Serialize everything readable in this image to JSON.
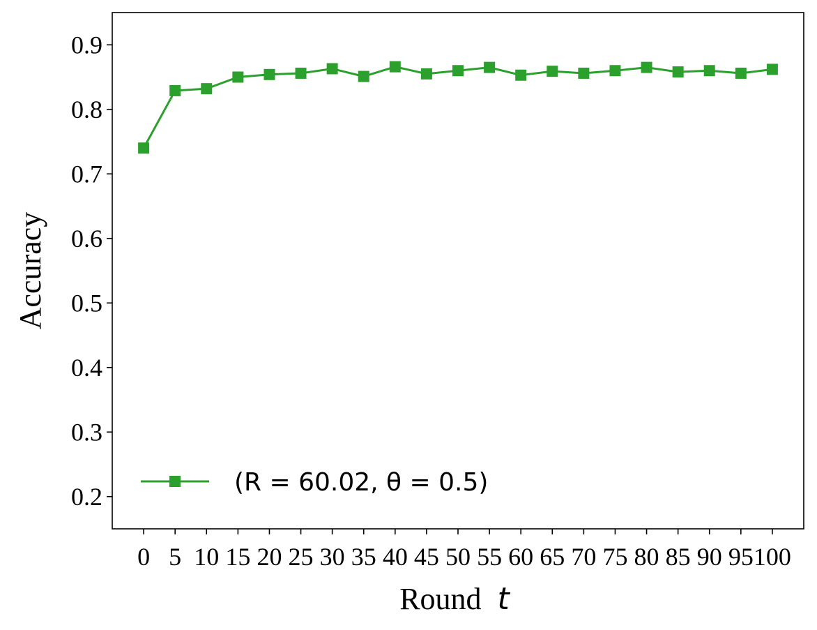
{
  "chart_data": {
    "type": "line",
    "xlabel": "Round",
    "xlabel_var": "t",
    "ylabel": "Accuracy",
    "xlim": [
      -5,
      105
    ],
    "ylim": [
      0.15,
      0.95
    ],
    "x_ticks": [
      0,
      5,
      10,
      15,
      20,
      25,
      30,
      35,
      40,
      45,
      50,
      55,
      60,
      65,
      70,
      75,
      80,
      85,
      90,
      95,
      100
    ],
    "y_ticks": [
      "0.2",
      "0.3",
      "0.4",
      "0.5",
      "0.6",
      "0.7",
      "0.8",
      "0.9"
    ],
    "grid": false,
    "legend_position": "lower-left",
    "series": [
      {
        "name": "(R = 60.02, θ = 0.5)",
        "color": "#2ca02c",
        "marker": "square",
        "x": [
          0,
          5,
          10,
          15,
          20,
          25,
          30,
          35,
          40,
          45,
          50,
          55,
          60,
          65,
          70,
          75,
          80,
          85,
          90,
          95,
          100
        ],
        "values": [
          0.74,
          0.829,
          0.832,
          0.85,
          0.854,
          0.856,
          0.863,
          0.851,
          0.866,
          0.855,
          0.86,
          0.865,
          0.853,
          0.859,
          0.856,
          0.86,
          0.865,
          0.858,
          0.86,
          0.856,
          0.862
        ]
      }
    ]
  }
}
